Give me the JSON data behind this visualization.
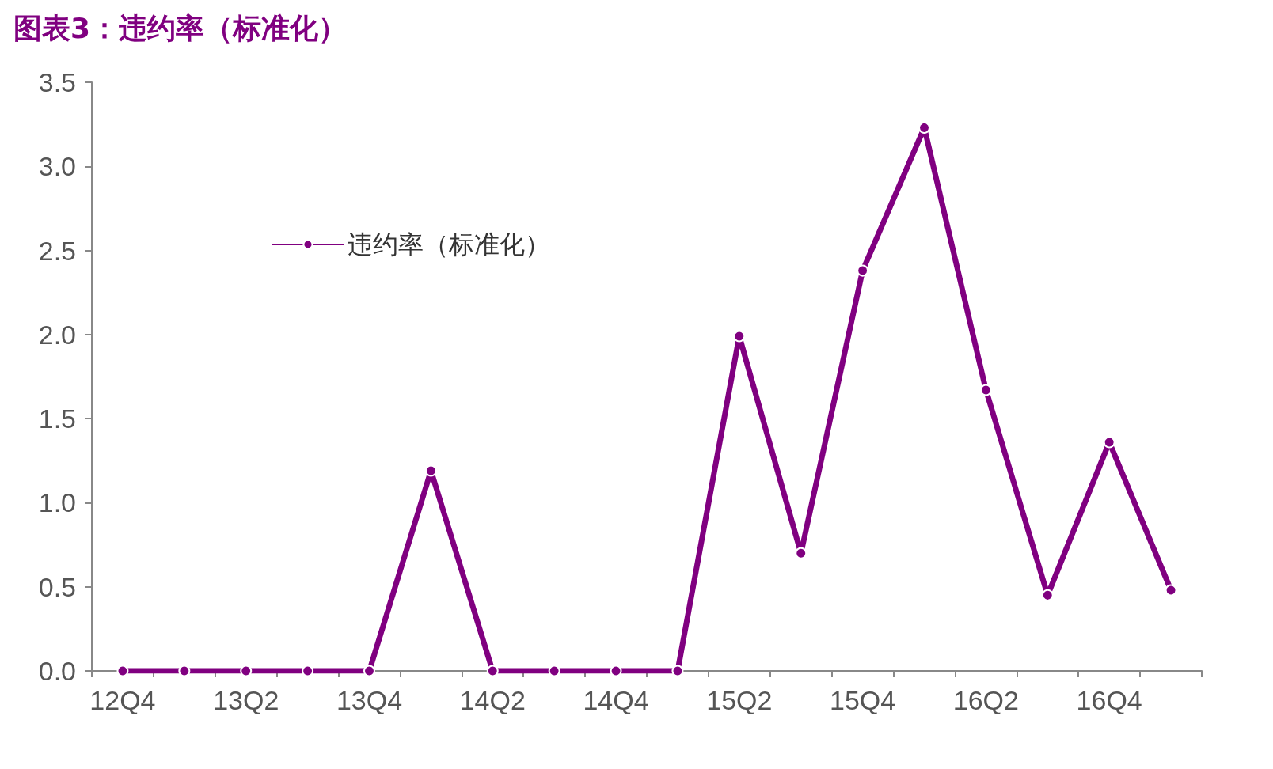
{
  "chart_data": {
    "type": "line",
    "title": "图表3：违约率（标准化）",
    "categories": [
      "12Q4",
      null,
      "13Q2",
      null,
      "13Q4",
      null,
      "14Q2",
      null,
      "14Q4",
      null,
      "15Q2",
      null,
      "15Q4",
      null,
      "16Q2",
      null,
      "16Q4",
      null
    ],
    "series": [
      {
        "name": "违约率（标准化）",
        "color": "#800080",
        "values": [
          0,
          0,
          0,
          0,
          0,
          1.19,
          0,
          0,
          0,
          0,
          1.99,
          0.7,
          2.38,
          3.23,
          1.67,
          0.45,
          1.36,
          0.48
        ]
      }
    ],
    "ylim": [
      0,
      3.5
    ],
    "yticks": [
      {
        "value": 0,
        "label": "0.0"
      },
      {
        "value": 0.5,
        "label": "0.5"
      },
      {
        "value": 1,
        "label": "1.0"
      },
      {
        "value": 1.5,
        "label": "1.5"
      },
      {
        "value": 2,
        "label": "2.0"
      },
      {
        "value": 2.5,
        "label": "2.5"
      },
      {
        "value": 3,
        "label": "3.0"
      },
      {
        "value": 3.5,
        "label": "3.5"
      }
    ],
    "grid": false,
    "legend": "top left",
    "marker": "circle",
    "line_style": "solid"
  }
}
